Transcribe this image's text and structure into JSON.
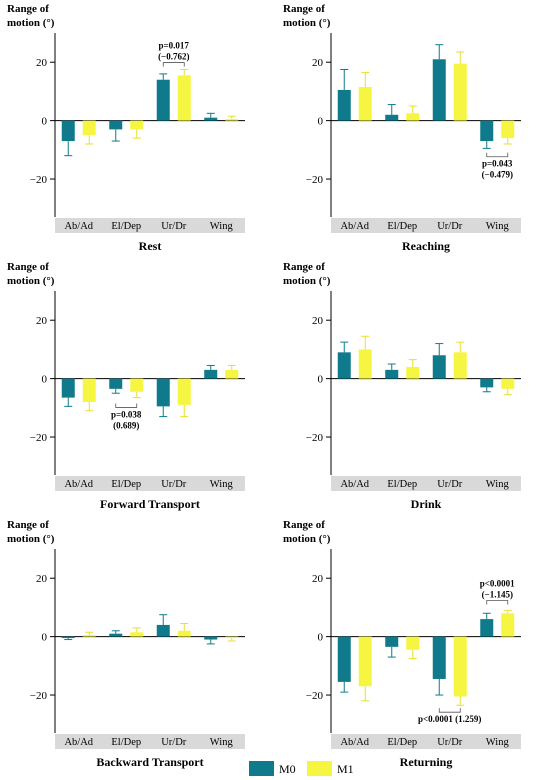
{
  "figure": {
    "legend": [
      {
        "name": "M0",
        "color": "#0f7a8c"
      },
      {
        "name": "M1",
        "color": "#f5f542"
      }
    ]
  },
  "chart_data": [
    {
      "type": "bar",
      "title": "Rest",
      "ylabel": "Range of motion (°)",
      "categories": [
        "Ab/Ad",
        "El/Dep",
        "Ur/Dr",
        "Wing"
      ],
      "ylim": [
        -33,
        30
      ],
      "yticks": [
        20,
        0,
        -20
      ],
      "series": [
        {
          "name": "M0",
          "values": [
            -7,
            -3,
            14,
            1
          ],
          "errors": [
            5,
            4,
            2,
            1.5
          ]
        },
        {
          "name": "M1",
          "values": [
            -5,
            -3,
            15.5,
            0.5
          ],
          "errors": [
            3,
            3,
            2,
            1
          ]
        }
      ],
      "annotations": [
        {
          "category": "Ur/Dr",
          "lines": [
            "p=0.017",
            "(−0.762)"
          ],
          "position": "above"
        }
      ]
    },
    {
      "type": "bar",
      "title": "Reaching",
      "ylabel": "Range of motion (°)",
      "categories": [
        "Ab/Ad",
        "El/Dep",
        "Ur/Dr",
        "Wing"
      ],
      "ylim": [
        -33,
        30
      ],
      "yticks": [
        20,
        0,
        -20
      ],
      "series": [
        {
          "name": "M0",
          "values": [
            10.5,
            2,
            21,
            -7
          ],
          "errors": [
            7,
            3.5,
            5,
            2.5
          ]
        },
        {
          "name": "M1",
          "values": [
            11.5,
            2.5,
            19.5,
            -6
          ],
          "errors": [
            5,
            2.5,
            4,
            2
          ]
        }
      ],
      "annotations": [
        {
          "category": "Wing",
          "lines": [
            "p=0.043",
            "(−0.479)"
          ],
          "position": "below"
        }
      ]
    },
    {
      "type": "bar",
      "title": "Forward Transport",
      "ylabel": "Range of motion (°)",
      "categories": [
        "Ab/Ad",
        "El/Dep",
        "Ur/Dr",
        "Wing"
      ],
      "ylim": [
        -33,
        30
      ],
      "yticks": [
        20,
        0,
        -20
      ],
      "series": [
        {
          "name": "M0",
          "values": [
            -6.5,
            -3.5,
            -9.5,
            3
          ],
          "errors": [
            3,
            1.5,
            3.5,
            1.5
          ]
        },
        {
          "name": "M1",
          "values": [
            -8,
            -4.5,
            -9,
            3
          ],
          "errors": [
            3,
            2,
            4,
            1.5
          ]
        }
      ],
      "annotations": [
        {
          "category": "El/Dep",
          "lines": [
            "p=0.038",
            "(0.689)"
          ],
          "position": "below"
        }
      ]
    },
    {
      "type": "bar",
      "title": "Drink",
      "ylabel": "Range of motion (°)",
      "categories": [
        "Ab/Ad",
        "El/Dep",
        "Ur/Dr",
        "Wing"
      ],
      "ylim": [
        -33,
        30
      ],
      "yticks": [
        20,
        0,
        -20
      ],
      "series": [
        {
          "name": "M0",
          "values": [
            9,
            3,
            8,
            -3
          ],
          "errors": [
            3.5,
            2,
            4,
            1.5
          ]
        },
        {
          "name": "M1",
          "values": [
            10,
            4,
            9,
            -3.5
          ],
          "errors": [
            4.5,
            2.5,
            3.5,
            2
          ]
        }
      ],
      "annotations": []
    },
    {
      "type": "bar",
      "title": "Backward Transport",
      "ylabel": "Range of motion (°)",
      "categories": [
        "Ab/Ad",
        "El/Dep",
        "Ur/Dr",
        "Wing"
      ],
      "ylim": [
        -33,
        30
      ],
      "yticks": [
        20,
        0,
        -20
      ],
      "series": [
        {
          "name": "M0",
          "values": [
            -0.5,
            1,
            4,
            -1
          ],
          "errors": [
            0.5,
            1,
            3.5,
            1.5
          ]
        },
        {
          "name": "M1",
          "values": [
            0.5,
            1.5,
            2,
            -0.5
          ],
          "errors": [
            1,
            1.5,
            2.5,
            1
          ]
        }
      ],
      "annotations": []
    },
    {
      "type": "bar",
      "title": "Returning",
      "ylabel": "Range of motion (°)",
      "categories": [
        "Ab/Ad",
        "El/Dep",
        "Ur/Dr",
        "Wing"
      ],
      "ylim": [
        -33,
        30
      ],
      "yticks": [
        20,
        0,
        -20
      ],
      "series": [
        {
          "name": "M0",
          "values": [
            -15.5,
            -3.5,
            -14.5,
            6
          ],
          "errors": [
            3.5,
            3.5,
            5.5,
            2
          ]
        },
        {
          "name": "M1",
          "values": [
            -17,
            -4.5,
            -20.5,
            8
          ],
          "errors": [
            5,
            3,
            3,
            1
          ]
        }
      ],
      "annotations": [
        {
          "category": "Wing",
          "lines": [
            "p<0.0001",
            "(−1.145)"
          ],
          "position": "above"
        },
        {
          "category": "Ur/Dr",
          "lines": [
            "p<0.0001 (1.259)"
          ],
          "position": "below"
        }
      ]
    }
  ]
}
